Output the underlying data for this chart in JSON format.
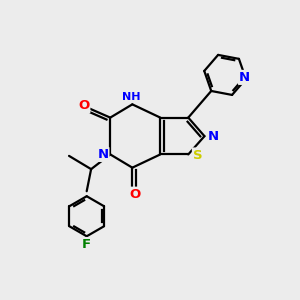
{
  "bg_color": "#ececec",
  "bond_color": "#000000",
  "bond_width": 1.6,
  "atom_colors": {
    "N": "#0000ff",
    "O": "#ff0000",
    "S": "#cccc00",
    "F": "#008000",
    "C": "#000000",
    "H": "#404040"
  },
  "font_size": 8.5,
  "fig_size": [
    3.0,
    3.0
  ],
  "dpi": 100
}
